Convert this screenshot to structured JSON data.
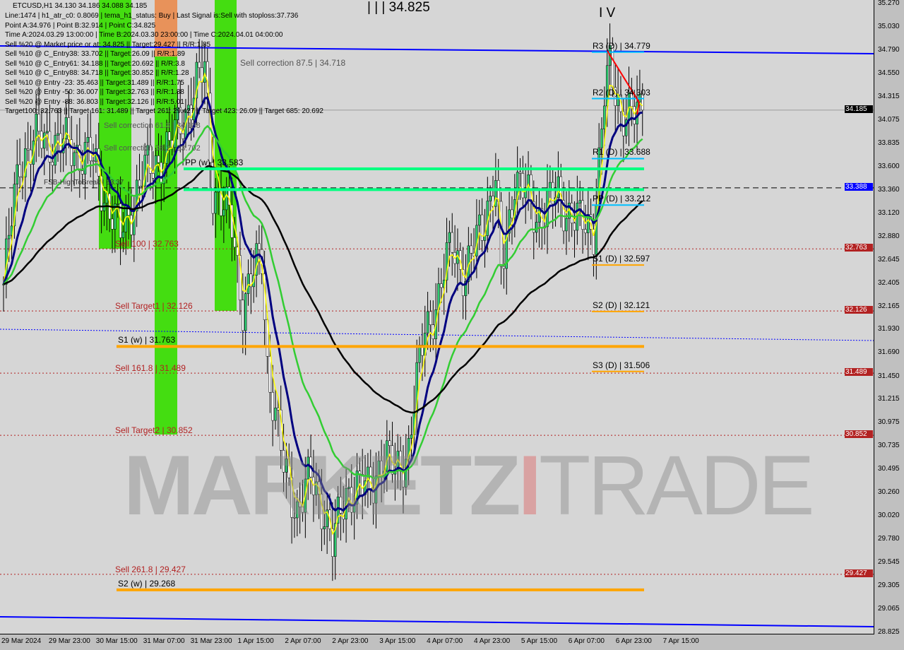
{
  "header": {
    "symbol_line": "ETCUSD,H1  34.130 34.186 34.088 34.185",
    "lines": [
      "Line:1474 | h1_atr_c0: 0.8069 | tema_h1_status: Buy | Last Signal is:Sell with stoploss:37.736",
      "Point A:34.976 | Point B:32.914 | Point C:34.825",
      "Time A:2024.03.29 13:00:00 | Time B:2024.03.30 23:00:00 | Time C:2024.04.01 04:00:00",
      "Sell %20 @ Market price or at: 34.825 || Target:29.427 || R/R:1.85",
      "Sell %10 @ C_Entry38: 33.702 || Target:26.09 || R/R:1.89",
      "Sell %10 @ C_Entry61: 34.188 || Target:20.692 || R/R:3.8",
      "Sell %10 @ C_Entry88: 34.718 || Target:30.852 || R/R:1.28",
      "Sell %10 @ Entry -23: 35.463 || Target:31.489 || R/R:1.75",
      "Sell %20 @ Entry -50: 36.007 || Target:32.763 || R/R:1.88",
      "Sell %20 @ Entry -88: 36.803 || Target:32.126 || R/R:5.01",
      "Target100: 32.763 || Target 161: 31.489 || Target 261: 29.427 || Target 423: 26.09 || Target 685: 20.692"
    ]
  },
  "annotations": {
    "point_c": "| | | 34.825",
    "wave": "I V",
    "corr875": "Sell correction 87.5 | 34.718",
    "corr618": "Sell correction 61.8 | 34.188",
    "corr382": "Sell correction 38.2 | 33.702",
    "fsb": "FSB-HighToBreak | 33.37"
  },
  "watermark": {
    "a": "MARKETZ",
    "b": "I",
    "c": "TRADE"
  },
  "chart_data": {
    "type": "candlestick",
    "symbol": "ETCUSD",
    "timeframe": "H1",
    "ylim": [
      28.825,
      35.27
    ],
    "y_ticks": [
      "35.270",
      "35.030",
      "34.790",
      "34.550",
      "34.315",
      "34.075",
      "33.835",
      "33.600",
      "33.360",
      "33.120",
      "32.880",
      "32.645",
      "32.405",
      "32.165",
      "31.930",
      "31.690",
      "31.450",
      "31.215",
      "30.975",
      "30.735",
      "30.495",
      "30.260",
      "30.020",
      "29.780",
      "29.545",
      "29.305",
      "29.065",
      "28.825"
    ],
    "x_ticks": [
      "29 Mar 2024",
      "29 Mar 23:00",
      "30 Mar 15:00",
      "31 Mar 07:00",
      "31 Mar 23:00",
      "1 Apr 15:00",
      "2 Apr 07:00",
      "2 Apr 23:00",
      "3 Apr 15:00",
      "4 Apr 07:00",
      "4 Apr 23:00",
      "5 Apr 15:00",
      "6 Apr 07:00",
      "6 Apr 23:00",
      "7 Apr 15:00"
    ],
    "price_path_bar_index_close": [
      [
        0,
        32.4
      ],
      [
        6,
        33.7
      ],
      [
        14,
        33.9
      ],
      [
        25,
        33.8
      ],
      [
        32,
        33.7
      ],
      [
        43,
        32.9
      ],
      [
        51,
        33.5
      ],
      [
        61,
        33.8
      ],
      [
        69,
        34.3
      ],
      [
        74,
        34.6
      ],
      [
        77,
        33.4
      ],
      [
        84,
        33.0
      ],
      [
        88,
        32.2
      ],
      [
        95,
        32.7
      ],
      [
        97,
        31.6
      ],
      [
        103,
        30.5
      ],
      [
        108,
        30.1
      ],
      [
        113,
        30.4
      ],
      [
        118,
        30.1
      ],
      [
        121,
        29.7
      ],
      [
        126,
        30.3
      ],
      [
        134,
        30.3
      ],
      [
        139,
        30.6
      ],
      [
        144,
        30.5
      ],
      [
        149,
        30.7
      ],
      [
        155,
        32.0
      ],
      [
        160,
        32.2
      ],
      [
        165,
        32.9
      ],
      [
        170,
        32.4
      ],
      [
        175,
        33.0
      ],
      [
        181,
        33.4
      ],
      [
        183,
        32.5
      ],
      [
        188,
        33.5
      ],
      [
        196,
        33.1
      ],
      [
        204,
        33.3
      ],
      [
        212,
        33.0
      ],
      [
        217,
        33.0
      ],
      [
        221,
        34.3
      ],
      [
        223,
        34.6
      ],
      [
        227,
        34.2
      ],
      [
        232,
        34.1
      ],
      [
        235,
        34.185
      ]
    ],
    "price_tags": [
      {
        "value": "34.185",
        "color": "#000000"
      },
      {
        "value": "33.388",
        "color": "#0000ff"
      },
      {
        "value": "32.763",
        "color": "#b22222"
      },
      {
        "value": "32.126",
        "color": "#b22222"
      },
      {
        "value": "31.489",
        "color": "#b22222"
      },
      {
        "value": "30.852",
        "color": "#b22222"
      },
      {
        "value": "29.427",
        "color": "#b22222"
      }
    ],
    "daily_pivots": [
      {
        "label": "R3 (D) | 34.779",
        "value": 34.779,
        "color": "#00bfff"
      },
      {
        "label": "R2 (D) | 34.303",
        "value": 34.303,
        "color": "#00bfff"
      },
      {
        "label": "R1 (D) | 33.688",
        "value": 33.688,
        "color": "#00bfff"
      },
      {
        "label": "PP (D) | 33.212",
        "value": 33.212,
        "color": "#00bfff"
      },
      {
        "label": "S1 (D) | 32.597",
        "value": 32.597,
        "color": "#ffa500"
      },
      {
        "label": "S2 (D) | 32.121",
        "value": 32.121,
        "color": "#ffa500"
      },
      {
        "label": "S3 (D) | 31.506",
        "value": 31.506,
        "color": "#ffa500"
      }
    ],
    "weekly_levels": [
      {
        "label": "PP (w) | 33.583",
        "value": 33.583,
        "color": "#00ff80"
      },
      {
        "label": "",
        "value": 33.37,
        "color": "#00ff80"
      },
      {
        "label": "S1 (w) | 31.763",
        "value": 31.763,
        "color": "#ffa500"
      },
      {
        "label": "S2 (w) | 29.268",
        "value": 29.268,
        "color": "#ffa500"
      }
    ],
    "sell_targets": [
      {
        "label": "Sell 100 | 32.763",
        "value": 32.763
      },
      {
        "label": "Sell Target1 | 32.126",
        "value": 32.126
      },
      {
        "label": "Sell 161.8 | 31.489",
        "value": 31.489
      },
      {
        "label": "Sell Target2 | 30.852",
        "value": 30.852
      },
      {
        "label": "Sell 261.8 | 29.427",
        "value": 29.427
      }
    ],
    "colors": {
      "up": "#2ecc71",
      "down": "#b22222",
      "ma_fast": "#ffff00",
      "ma_mid": "#000080",
      "ma_slow": "#32cd32",
      "ma_long": "#000000",
      "channel": "#0000ff",
      "zone_green": "#44dd11",
      "zone_orange": "#e8925a"
    }
  }
}
